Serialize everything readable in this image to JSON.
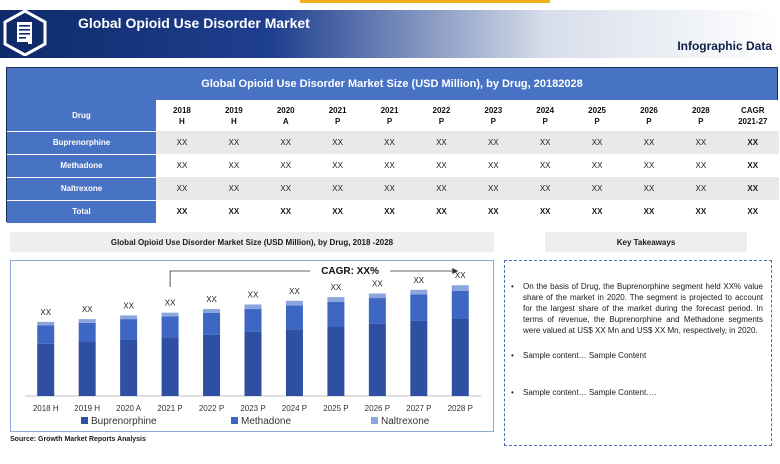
{
  "header": {
    "title": "Global Opioid Use Disorder Market",
    "subtitle": "Infographic Data"
  },
  "table": {
    "title": "Global Opioid Use Disorder Market Size (USD Million), by Drug, 20182028",
    "drug_header": "Drug",
    "columns": [
      {
        "year": "2018",
        "flag": "H"
      },
      {
        "year": "2019",
        "flag": "H"
      },
      {
        "year": "2020",
        "flag": "A"
      },
      {
        "year": "2021",
        "flag": "P"
      },
      {
        "year": "2021",
        "flag": "P"
      },
      {
        "year": "2022",
        "flag": "P"
      },
      {
        "year": "2023",
        "flag": "P"
      },
      {
        "year": "2024",
        "flag": "P"
      },
      {
        "year": "2025",
        "flag": "P"
      },
      {
        "year": "2026",
        "flag": "P"
      },
      {
        "year": "2028",
        "flag": "P"
      },
      {
        "year": "CAGR",
        "flag": "2021-27"
      }
    ],
    "rows": [
      {
        "label": "Buprenorphine",
        "values": [
          "XX",
          "XX",
          "XX",
          "XX",
          "XX",
          "XX",
          "XX",
          "XX",
          "XX",
          "XX",
          "XX",
          "XX"
        ]
      },
      {
        "label": "Methadone",
        "values": [
          "XX",
          "XX",
          "XX",
          "XX",
          "XX",
          "XX",
          "XX",
          "XX",
          "XX",
          "XX",
          "XX",
          "XX"
        ]
      },
      {
        "label": "Naltrexone",
        "values": [
          "XX",
          "XX",
          "XX",
          "XX",
          "XX",
          "XX",
          "XX",
          "XX",
          "XX",
          "XX",
          "XX",
          "XX"
        ]
      },
      {
        "label": "Total",
        "values": [
          "XX",
          "XX",
          "XX",
          "XX",
          "XX",
          "XX",
          "XX",
          "XX",
          "XX",
          "XX",
          "XX",
          "XX"
        ]
      }
    ]
  },
  "chart_section": {
    "title": "Global Opioid Use Disorder Market Size (USD Million), by Drug, 2018 -2028",
    "source": "Source: Growth Market Reports Analysis"
  },
  "chart_data": {
    "type": "bar",
    "stacked": true,
    "categories": [
      "2018 H",
      "2019 H",
      "2020 A",
      "2021 P",
      "2022 P",
      "2023 P",
      "2024 P",
      "2025 P",
      "2026 P",
      "2027 P",
      "2028 P"
    ],
    "series": [
      {
        "name": "Buprenorphine",
        "color": "#2f4fa3",
        "values": [
          57,
          59,
          62,
          64,
          67,
          70,
          73,
          76,
          79,
          82,
          85
        ]
      },
      {
        "name": "Methadone",
        "color": "#3e67c4",
        "values": [
          20,
          21,
          22,
          23,
          24,
          25,
          26,
          27,
          28,
          29,
          30
        ]
      },
      {
        "name": "Naltrexone",
        "color": "#8ca5dd",
        "values": [
          4,
          4,
          4,
          4,
          4,
          5,
          5,
          5,
          5,
          5,
          6
        ]
      }
    ],
    "data_labels": [
      "XX",
      "XX",
      "XX",
      "XX",
      "XX",
      "XX",
      "XX",
      "XX",
      "XX",
      "XX",
      "XX"
    ],
    "annotation": "CAGR: XX%",
    "legend_position": "bottom",
    "grid": false,
    "ylim": [
      0,
      130
    ]
  },
  "key_takeaways": {
    "title": "Key Takeaways",
    "items": [
      "On the basis of Drug, the Buprenorphine segment held XX% value share of the market in 2020. The segment is projected to account for the largest share of the market during the forecast period. In terms of revenue, the Buprenorphine and Methadone segments were valued at US$ XX Mn and US$ XX Mn, respectively, in 2020.",
      "Sample content… Sample Content",
      "Sample content… Sample Content…."
    ],
    "bullet": "•"
  }
}
